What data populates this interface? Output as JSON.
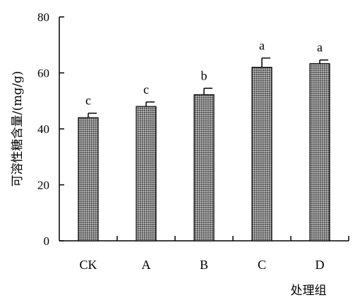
{
  "chart_data": {
    "type": "bar",
    "categories": [
      "CK",
      "A",
      "B",
      "C",
      "D"
    ],
    "values": [
      44,
      48,
      52.2,
      62,
      63.3
    ],
    "errors": [
      1.6,
      1.6,
      2.3,
      3.3,
      1.3
    ],
    "significance": [
      "c",
      "c",
      "b",
      "a",
      "a"
    ],
    "xlabel": "处理组",
    "ylabel": "可溶性糖含量/(mg/g)",
    "ylim": [
      0,
      80
    ],
    "yticks": [
      0,
      20,
      40,
      60,
      80
    ],
    "grid": false,
    "bar_color": "#6b6b6b"
  }
}
